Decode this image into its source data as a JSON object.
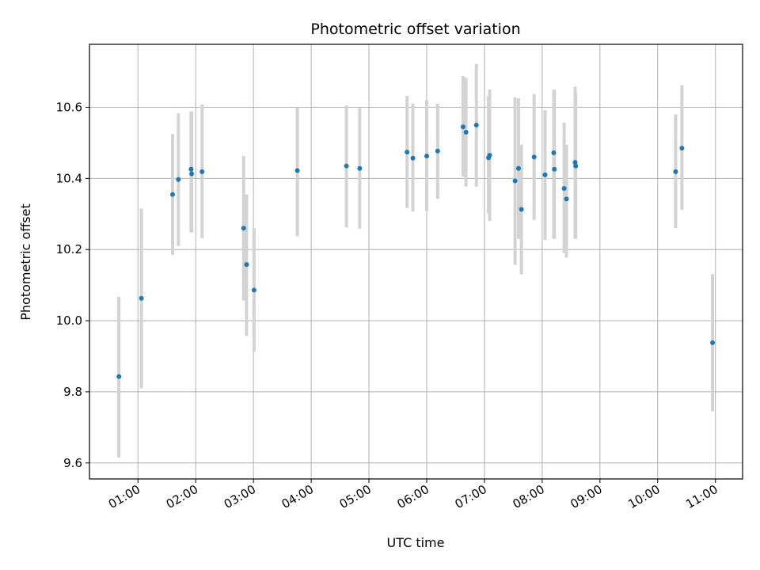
{
  "chart_data": {
    "type": "scatter",
    "title": "Photometric offset variation",
    "xlabel": "UTC time",
    "ylabel": "Photometric offset",
    "x_tick_labels": [
      "01:00",
      "02:00",
      "03:00",
      "04:00",
      "05:00",
      "06:00",
      "07:00",
      "08:00",
      "09:00",
      "10:00",
      "11:00"
    ],
    "y_tick_labels": [
      "9.6",
      "9.8",
      "10.0",
      "10.2",
      "10.4",
      "10.6"
    ],
    "x_ticks_hours": [
      1,
      2,
      3,
      4,
      5,
      6,
      7,
      8,
      9,
      10,
      11
    ],
    "y_ticks": [
      9.6,
      9.8,
      10.0,
      10.2,
      10.4,
      10.6
    ],
    "xlim_hours": [
      0.16,
      11.47
    ],
    "ylim": [
      9.555,
      10.777
    ],
    "grid": true,
    "colors": {
      "points": "#1f77b4",
      "errorbars": "#d3d3d3",
      "grid": "#b0b0b0"
    },
    "series": [
      {
        "x_hours": [
          0.67,
          1.06,
          1.6,
          1.7,
          1.92,
          1.93,
          2.11,
          2.83,
          2.88,
          3.01,
          3.76,
          4.61,
          4.84,
          5.66,
          5.76,
          6.0,
          6.19,
          6.63,
          6.68,
          6.86,
          7.07,
          7.09,
          7.53,
          7.59,
          7.64,
          7.86,
          8.05,
          8.2,
          8.21,
          8.38,
          8.42,
          8.57,
          8.58,
          10.31,
          10.42,
          10.95
        ],
        "y": [
          9.843,
          10.063,
          10.355,
          10.397,
          10.426,
          10.413,
          10.419,
          10.26,
          10.158,
          10.086,
          10.422,
          10.435,
          10.428,
          10.474,
          10.457,
          10.463,
          10.477,
          10.545,
          10.53,
          10.55,
          10.458,
          10.465,
          10.393,
          10.428,
          10.313,
          10.46,
          10.41,
          10.472,
          10.426,
          10.372,
          10.342,
          10.445,
          10.435,
          10.419,
          10.485,
          9.938
        ],
        "err_low": [
          9.615,
          9.81,
          10.185,
          10.21,
          10.248,
          10.248,
          10.232,
          10.057,
          9.957,
          9.912,
          10.237,
          10.262,
          10.259,
          10.317,
          10.307,
          10.308,
          10.343,
          10.405,
          10.377,
          10.377,
          10.302,
          10.28,
          10.157,
          10.23,
          10.13,
          10.283,
          10.227,
          10.23,
          10.23,
          10.19,
          10.177,
          10.23,
          10.23,
          10.26,
          10.312,
          9.745
        ],
        "err_high": [
          10.067,
          10.315,
          10.525,
          10.583,
          10.588,
          10.588,
          10.608,
          10.463,
          10.355,
          10.26,
          10.6,
          10.605,
          10.598,
          10.632,
          10.61,
          10.62,
          10.61,
          10.688,
          10.683,
          10.722,
          10.632,
          10.65,
          10.628,
          10.625,
          10.495,
          10.637,
          10.592,
          10.648,
          10.65,
          10.557,
          10.495,
          10.658,
          10.637,
          10.58,
          10.662,
          10.131
        ]
      }
    ]
  }
}
